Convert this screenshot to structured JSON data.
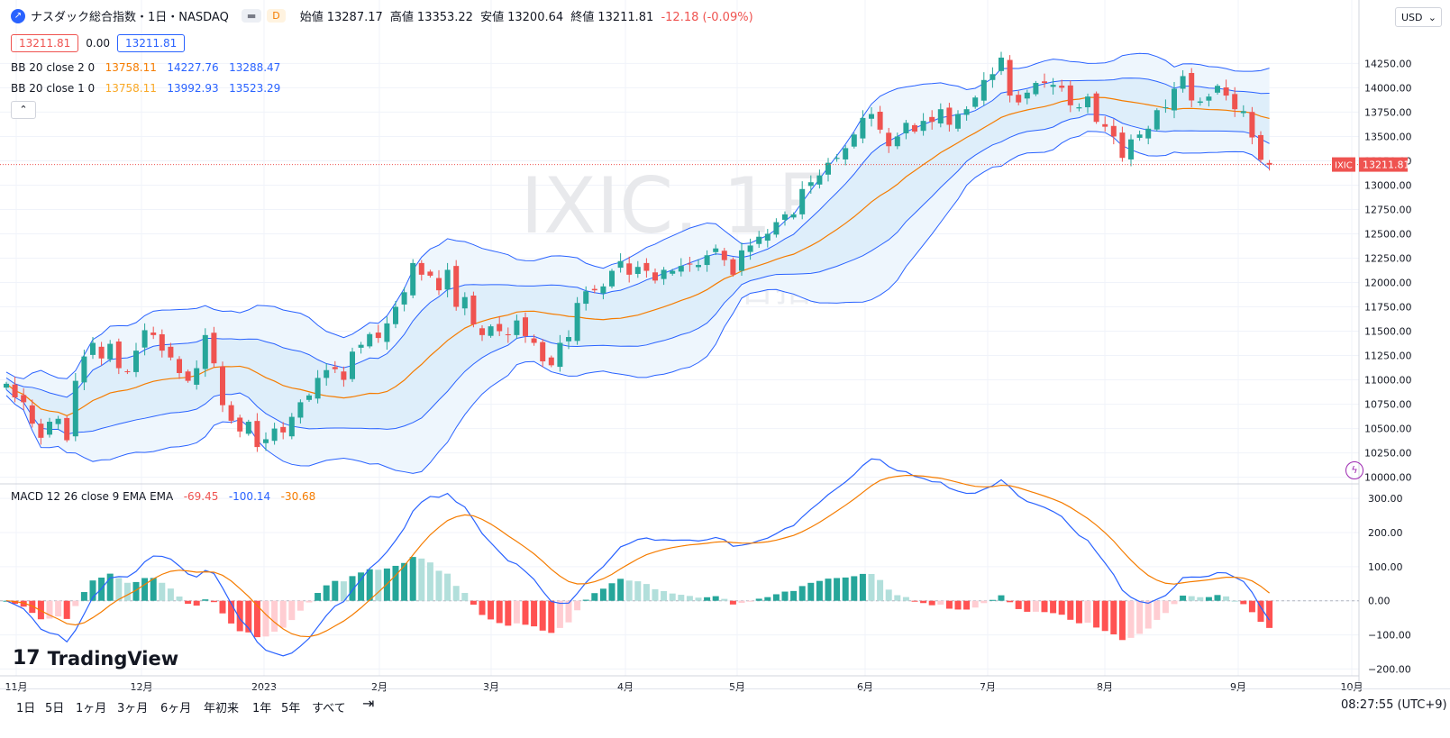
{
  "header": {
    "symbol_title": "ナスダック総合指数・1日・NASDAQ",
    "badge_d": "D",
    "open_label": "始値",
    "open": "13287.17",
    "high_label": "高値",
    "high": "13353.22",
    "low_label": "安値",
    "low": "13200.64",
    "close_label": "終値",
    "close": "13211.81",
    "change": "-12.18 (-0.09%)"
  },
  "price_boxes": {
    "bid": "13211.81",
    "spread": "0.00",
    "ask": "13211.81"
  },
  "bb1": {
    "label": "BB 20 close 2 0",
    "mid": "13758.11",
    "upper": "14227.76",
    "lower": "13288.47"
  },
  "bb2": {
    "label": "BB 20 close 1 0",
    "mid": "13758.11",
    "upper": "13992.93",
    "lower": "13523.29"
  },
  "macd": {
    "label": "MACD 12 26 close 9 EMA EMA",
    "hist": "-69.45",
    "macd": "-100.14",
    "signal": "-30.68"
  },
  "watermark": {
    "main": "IXIC, 1日",
    "sub": "ナスダック総合指数"
  },
  "currency": "USD",
  "last_price_label": {
    "ticker": "IXIC",
    "price": "13211.81"
  },
  "brand": "TradingView",
  "timeframes": [
    "1日",
    "5日",
    "1ヶ月",
    "3ヶ月",
    "6ヶ月",
    "年初来",
    "1年",
    "5年",
    "すべて"
  ],
  "clock": "08:27:55 (UTC+9)",
  "colors": {
    "up": "#26a69a",
    "down": "#ef5350",
    "bb_line": "#2962ff",
    "bb_fill": "#e3f0fb",
    "mid": "#f57c00",
    "macd": "#2962ff",
    "signal": "#f57c00"
  },
  "chart_data": [
    {
      "type": "candlestick",
      "title": "IXIC, 1日",
      "x_labels": [
        "11月",
        "12月",
        "2023",
        "2月",
        "3月",
        "4月",
        "5月",
        "6月",
        "7月",
        "8月",
        "9月",
        "10月"
      ],
      "y_ticks": [
        10000,
        10250,
        10500,
        10750,
        11000,
        11250,
        11500,
        11750,
        12000,
        12250,
        12500,
        12750,
        13000,
        13250,
        13500,
        13750,
        14000,
        14250
      ],
      "ylim": [
        9950,
        14550
      ],
      "close": [
        10960,
        10820,
        10770,
        10550,
        10405,
        10570,
        10600,
        10380,
        10990,
        11240,
        11380,
        11220,
        11370,
        11120,
        11080,
        11300,
        11510,
        11460,
        11300,
        11230,
        11070,
        10990,
        11120,
        11460,
        11170,
        10740,
        10580,
        10470,
        10570,
        10310,
        10390,
        10500,
        10460,
        10620,
        10770,
        10840,
        11020,
        11100,
        11110,
        11000,
        11290,
        11360,
        11470,
        11430,
        11580,
        11750,
        11900,
        12200,
        12080,
        12070,
        11920,
        12130,
        11750,
        11850,
        11570,
        11460,
        11550,
        11500,
        11460,
        11610,
        11450,
        11380,
        11190,
        11150,
        11380,
        11440,
        11790,
        11910,
        11920,
        11960,
        12120,
        12220,
        12080,
        12160,
        12120,
        12020,
        12130,
        12120,
        12170,
        12190,
        12180,
        12280,
        12350,
        12230,
        12080,
        12330,
        12380,
        12470,
        12500,
        12620,
        12700,
        12700,
        12960,
        13030,
        13100,
        13230,
        13280,
        13380,
        13520,
        13690,
        13730,
        13570,
        13400,
        13500,
        13640,
        13550,
        13660,
        13650,
        13780,
        13620,
        13730,
        13780,
        13900,
        14080,
        14140,
        14310,
        13920,
        13850,
        13950,
        14050,
        14050,
        14030,
        14000,
        13820,
        13800,
        13910,
        13650,
        13600,
        13500,
        13280,
        13470,
        13520,
        13580,
        13770,
        13800,
        13990,
        14120,
        13870,
        13860,
        13910,
        14020,
        13920,
        13780,
        13760,
        13490,
        13260,
        13210
      ],
      "bb_upper_2sd_last": 14227.76,
      "bb_mid_last": 13758.11,
      "bb_lower_2sd_last": 13288.47,
      "last": 13211.81
    },
    {
      "type": "line+bar",
      "title": "MACD 12 26 close 9 EMA EMA",
      "y_ticks": [
        -200,
        -100,
        0,
        100,
        200,
        300
      ],
      "ylim": [
        -220,
        340
      ],
      "last": {
        "hist": -69.45,
        "macd": -100.14,
        "signal": -30.68
      }
    }
  ]
}
